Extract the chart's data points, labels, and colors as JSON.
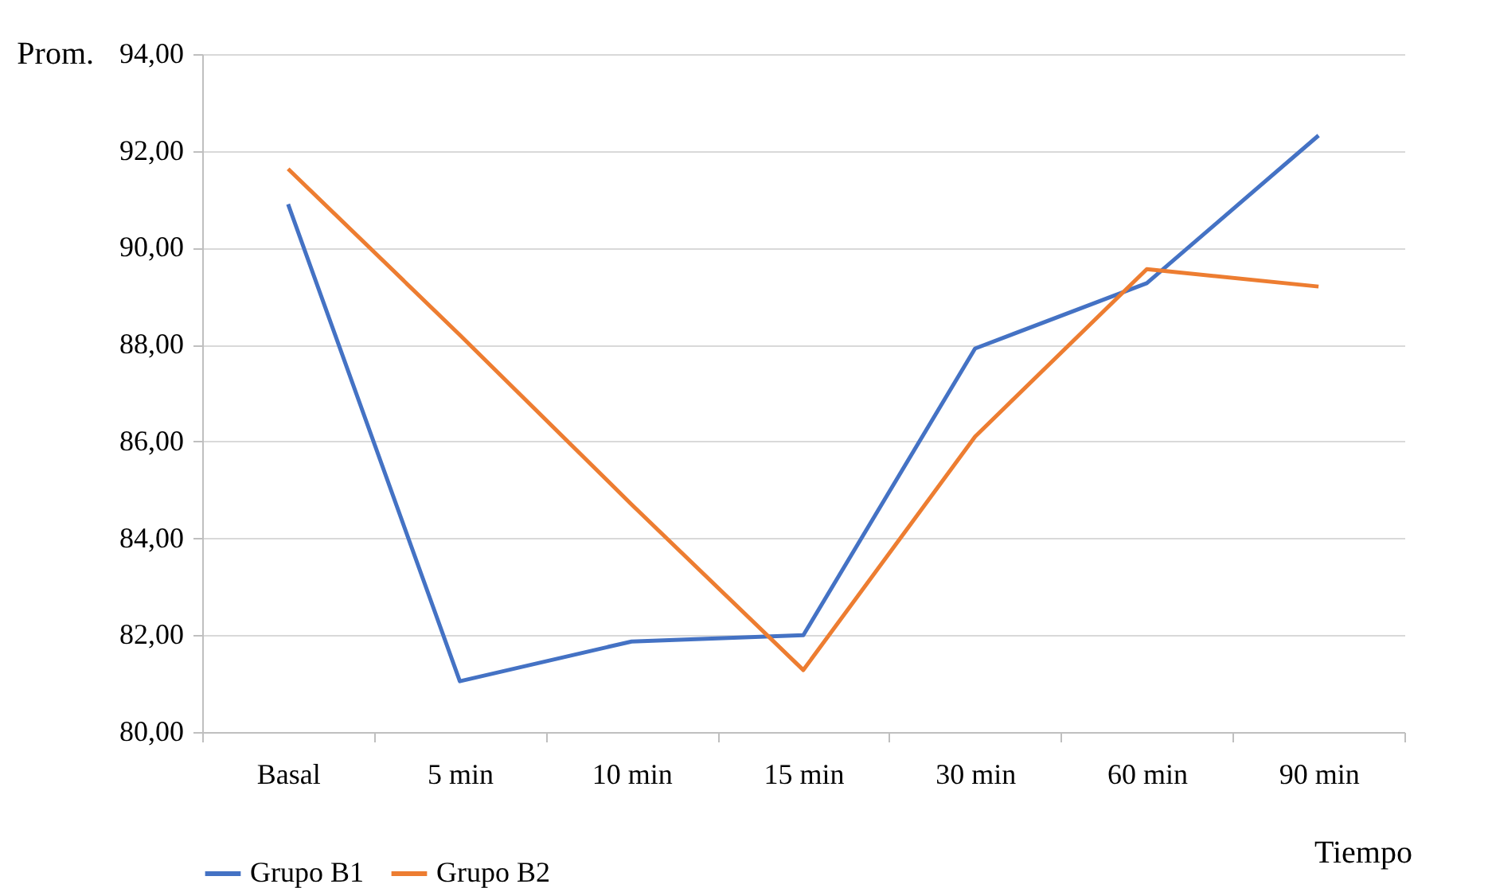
{
  "chart_data": {
    "type": "line",
    "ylabel": "Prom.",
    "xlabel": "Tiempo",
    "categories": [
      "Basal",
      "5 min",
      "10 min",
      "15 min",
      "30 min",
      "60 min",
      "90 min"
    ],
    "series": [
      {
        "name": "Grupo B1",
        "color": "#4472c4",
        "values": [
          90.9,
          81.05,
          81.87,
          82.0,
          87.92,
          89.27,
          92.32
        ]
      },
      {
        "name": "Grupo B2",
        "color": "#ed7d31",
        "values": [
          91.63,
          88.2,
          84.7,
          81.28,
          86.1,
          89.56,
          89.2
        ]
      }
    ],
    "ylim": [
      80,
      94
    ],
    "yticks": [
      {
        "value": 80,
        "label": "80,00"
      },
      {
        "value": 82,
        "label": "82,00"
      },
      {
        "value": 84,
        "label": "84,00"
      },
      {
        "value": 86,
        "label": "86,00"
      },
      {
        "value": 88,
        "label": "88,00"
      },
      {
        "value": 90,
        "label": "90,00"
      },
      {
        "value": 92,
        "label": "92,00"
      },
      {
        "value": 94,
        "label": "94,00"
      }
    ],
    "grid": "y",
    "legend": "bottom",
    "marker": "none",
    "line_style": "solid"
  }
}
